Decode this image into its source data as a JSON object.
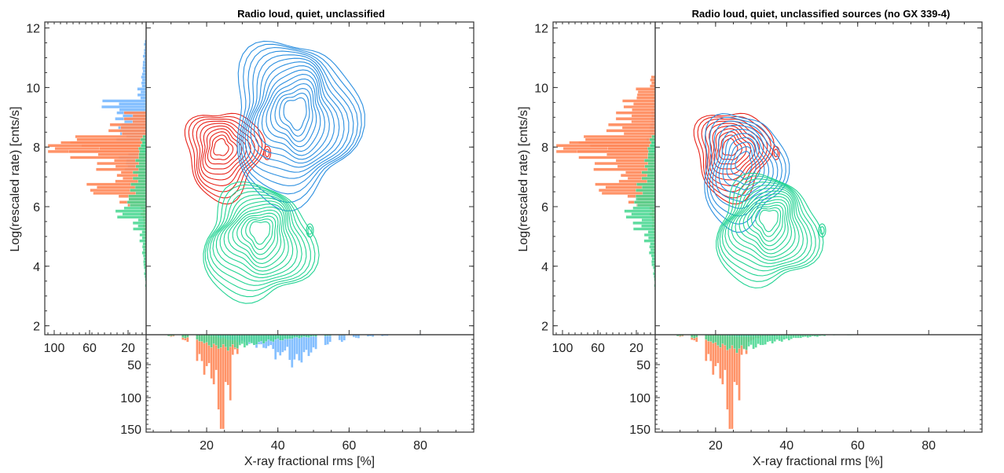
{
  "colors": {
    "radio_loud": "#e8231a",
    "radio_quiet": "#2b8fe0",
    "unclassified": "#21d392",
    "hist_loud": "#ff8a5c",
    "hist_quiet": "#6fb4ff",
    "hist_unclassified": "#44d68f",
    "hist_overlap": "#5a80c0"
  },
  "chart_data": [
    {
      "type": "scatter",
      "subtype": "contour-with-marginal-histograms",
      "title": "Radio loud, quiet, unclassified",
      "xlabel": "X-ray fractional rms [%]",
      "ylabel": "Log(rescaled rate) [cnts/s]",
      "xlim": [
        3,
        95
      ],
      "ylim": [
        1.7,
        12.2
      ],
      "x_ticks": [
        "20",
        "40",
        "60",
        "80"
      ],
      "y_ticks": [
        "2",
        "4",
        "6",
        "8",
        "10",
        "12"
      ],
      "left_hist_ticks": [
        "100",
        "60",
        "20"
      ],
      "bottom_hist_ticks": [
        "50",
        "100",
        "150"
      ],
      "series": [
        {
          "color_key": "radio_loud",
          "center": [
            24,
            8.0
          ],
          "spread": [
            10,
            1.4
          ],
          "levels": 10,
          "extra_peak": [
            37,
            7.8
          ]
        },
        {
          "color_key": "radio_quiet",
          "center": [
            45,
            9.2
          ],
          "spread": [
            16,
            2.5
          ],
          "levels": 15
        },
        {
          "color_key": "unclassified",
          "center": [
            35,
            5.2
          ],
          "spread": [
            14,
            1.8
          ],
          "levels": 14,
          "extra_peak": [
            49,
            5.2
          ]
        }
      ],
      "hist_left": {
        "y": [
          11.4,
          11.0,
          10.6,
          10.2,
          9.8,
          9.4,
          9.0,
          8.6,
          8.2,
          8.0,
          7.8,
          7.4,
          7.0,
          6.6,
          6.2,
          5.8,
          5.4,
          5.0,
          4.6,
          4.2,
          3.8,
          3.4
        ],
        "radio_loud": [
          0,
          0,
          0,
          0,
          0,
          0,
          20,
          35,
          80,
          115,
          70,
          45,
          30,
          60,
          25,
          5,
          3,
          2,
          2,
          1,
          0,
          0
        ],
        "radio_quiet": [
          2,
          3,
          4,
          5,
          8,
          40,
          30,
          30,
          28,
          25,
          25,
          22,
          10,
          5,
          3,
          0,
          0,
          0,
          0,
          0,
          0,
          0
        ],
        "unclassified": [
          0,
          0,
          0,
          0,
          0,
          0,
          0,
          0,
          5,
          5,
          8,
          10,
          12,
          15,
          20,
          30,
          12,
          6,
          4,
          3,
          2,
          1
        ]
      },
      "hist_bottom": {
        "x": [
          10,
          14,
          18,
          20,
          22,
          24,
          26,
          28,
          30,
          32,
          34,
          36,
          38,
          40,
          42,
          44,
          46,
          48,
          50,
          54,
          58,
          62,
          66,
          70,
          80
        ],
        "radio_loud": [
          3,
          10,
          40,
          55,
          70,
          150,
          90,
          30,
          10,
          5,
          3,
          2,
          1,
          0,
          0,
          0,
          0,
          0,
          0,
          0,
          0,
          0,
          0,
          0,
          0
        ],
        "radio_quiet": [
          0,
          0,
          0,
          0,
          2,
          5,
          8,
          10,
          12,
          15,
          18,
          20,
          20,
          35,
          25,
          45,
          40,
          30,
          25,
          15,
          10,
          5,
          3,
          2,
          1
        ],
        "unclassified": [
          2,
          5,
          10,
          15,
          18,
          20,
          22,
          20,
          18,
          15,
          15,
          12,
          10,
          8,
          8,
          6,
          5,
          4,
          3,
          2,
          1,
          0,
          0,
          0,
          0
        ]
      }
    },
    {
      "type": "scatter",
      "subtype": "contour-with-marginal-histograms",
      "title": "Radio loud, quiet, unclassified sources (no GX 339-4)",
      "xlabel": "X-ray fractional rms [%]",
      "ylabel": "Log(rescaled rate) [cnts/s]",
      "xlim": [
        3,
        95
      ],
      "ylim": [
        1.7,
        12.2
      ],
      "x_ticks": [
        "20",
        "40",
        "60",
        "80"
      ],
      "y_ticks": [
        "2",
        "4",
        "6",
        "8",
        "10",
        "12"
      ],
      "left_hist_ticks": [
        "100",
        "60",
        "20"
      ],
      "bottom_hist_ticks": [
        "50",
        "100",
        "150"
      ],
      "series": [
        {
          "color_key": "radio_loud",
          "center": [
            24,
            8.0
          ],
          "spread": [
            10,
            1.4
          ],
          "levels": 10,
          "extra_peak": [
            37,
            7.8
          ]
        },
        {
          "color_key": "radio_quiet",
          "center": [
            28,
            7.5
          ],
          "spread": [
            11,
            1.8
          ],
          "levels": 10
        },
        {
          "color_key": "unclassified",
          "center": [
            35,
            5.6
          ],
          "spread": [
            13,
            1.7
          ],
          "levels": 14,
          "extra_peak": [
            50,
            5.2
          ]
        }
      ],
      "hist_left": {
        "y": [
          11.4,
          11.0,
          10.6,
          10.2,
          9.8,
          9.4,
          9.0,
          8.6,
          8.2,
          8.0,
          7.8,
          7.4,
          7.0,
          6.6,
          6.2,
          5.8,
          5.4,
          5.0,
          4.6,
          4.2,
          3.8,
          3.4
        ],
        "radio_loud": [
          0,
          0,
          0,
          5,
          20,
          30,
          35,
          45,
          80,
          115,
          70,
          55,
          35,
          60,
          25,
          5,
          3,
          2,
          2,
          1,
          0,
          0
        ],
        "radio_quiet": [
          0,
          0,
          0,
          0,
          0,
          2,
          4,
          6,
          8,
          8,
          6,
          5,
          4,
          3,
          2,
          0,
          0,
          0,
          0,
          0,
          0,
          0
        ],
        "unclassified": [
          0,
          0,
          0,
          0,
          0,
          0,
          0,
          0,
          5,
          5,
          8,
          10,
          12,
          18,
          22,
          30,
          20,
          10,
          6,
          4,
          2,
          1
        ]
      },
      "hist_bottom": {
        "x": [
          10,
          14,
          18,
          20,
          22,
          24,
          26,
          28,
          30,
          32,
          34,
          36,
          38,
          40,
          42,
          44,
          46,
          48,
          50,
          54,
          58,
          62,
          66,
          70,
          80
        ],
        "radio_loud": [
          3,
          10,
          40,
          55,
          70,
          150,
          90,
          30,
          10,
          5,
          3,
          2,
          1,
          0,
          0,
          0,
          0,
          0,
          0,
          0,
          0,
          0,
          0,
          0,
          0
        ],
        "radio_quiet": [
          0,
          0,
          0,
          0,
          1,
          2,
          3,
          3,
          3,
          2,
          2,
          2,
          1,
          1,
          1,
          0,
          0,
          0,
          0,
          0,
          0,
          0,
          0,
          0,
          0
        ],
        "unclassified": [
          2,
          5,
          10,
          15,
          18,
          22,
          25,
          22,
          20,
          18,
          15,
          12,
          10,
          8,
          6,
          5,
          4,
          3,
          2,
          1,
          1,
          0,
          0,
          0,
          0
        ]
      }
    }
  ]
}
